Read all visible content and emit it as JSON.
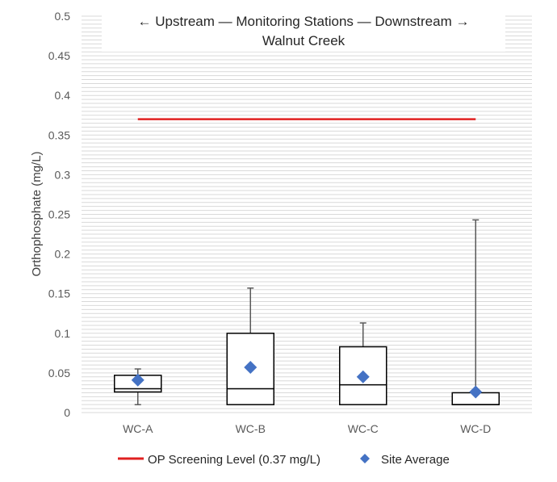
{
  "chart_data": {
    "type": "box",
    "title_line1": "← Upstream — Monitoring Stations — Downstream →",
    "title_line2": "Walnut Creek",
    "ylabel": "Orthophosphate (mg/L)",
    "xlabel": "",
    "ylim": [
      0,
      0.5
    ],
    "y_ticks": [
      "0",
      "0.05",
      "0.1",
      "0.15",
      "0.2",
      "0.25",
      "0.3",
      "0.35",
      "0.4",
      "0.45",
      "0.5"
    ],
    "categories": [
      "WC-A",
      "WC-B",
      "WC-C",
      "WC-D"
    ],
    "boxes": [
      {
        "min": 0.01,
        "q1": 0.026,
        "median": 0.03,
        "q3": 0.047,
        "max": 0.055
      },
      {
        "min": 0.01,
        "q1": 0.01,
        "median": 0.03,
        "q3": 0.1,
        "max": 0.157
      },
      {
        "min": 0.01,
        "q1": 0.01,
        "median": 0.035,
        "q3": 0.083,
        "max": 0.113
      },
      {
        "min": 0.01,
        "q1": 0.01,
        "median": 0.01,
        "q3": 0.025,
        "max": 0.243
      }
    ],
    "site_average": [
      0.041,
      0.057,
      0.045,
      0.026
    ],
    "screening_level": 0.37,
    "grid_minor_step": 0.005,
    "grid": true,
    "legend_position": "bottom",
    "legend": {
      "screening_label": "OP Screening Level (0.37 mg/L)",
      "average_label": "Site Average"
    },
    "colors": {
      "screening_line": "#e02020",
      "average_marker": "#4472c4",
      "box_stroke": "#000000",
      "whisker": "#595959",
      "grid": "#d9d9d9"
    }
  }
}
